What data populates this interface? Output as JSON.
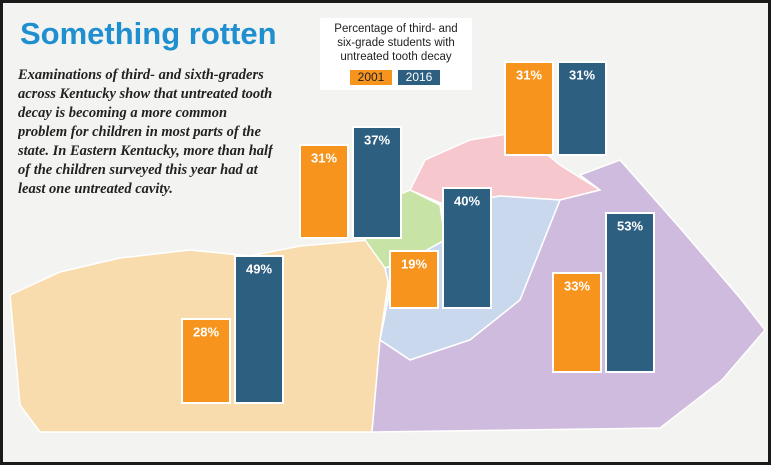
{
  "chart_data": {
    "type": "bar",
    "title": "Something rotten",
    "subtitle": "Examinations of third- and sixth-graders across Kentucky show that untreated tooth decay is becoming a more common problem for children in most parts of the state. In Eastern Kentucky, more than half of the children surveyed this year had at least one untreated cavity.",
    "legend_title": "Percentage of third- and six-grade students with untreated tooth decay",
    "categories": [
      null,
      null,
      null,
      null,
      null
    ],
    "series": [
      {
        "name": "2001",
        "color": "#f7941d",
        "values": [
          28,
          31,
          31,
          19,
          33
        ],
        "value_labels": [
          "28%",
          "31%",
          "31%",
          "19%",
          "33%"
        ]
      },
      {
        "name": "2016",
        "color": "#2d5f80",
        "values": [
          49,
          37,
          31,
          40,
          53
        ],
        "value_labels": [
          "49%",
          "37%",
          "31%",
          "40%",
          "53%"
        ]
      }
    ]
  }
}
